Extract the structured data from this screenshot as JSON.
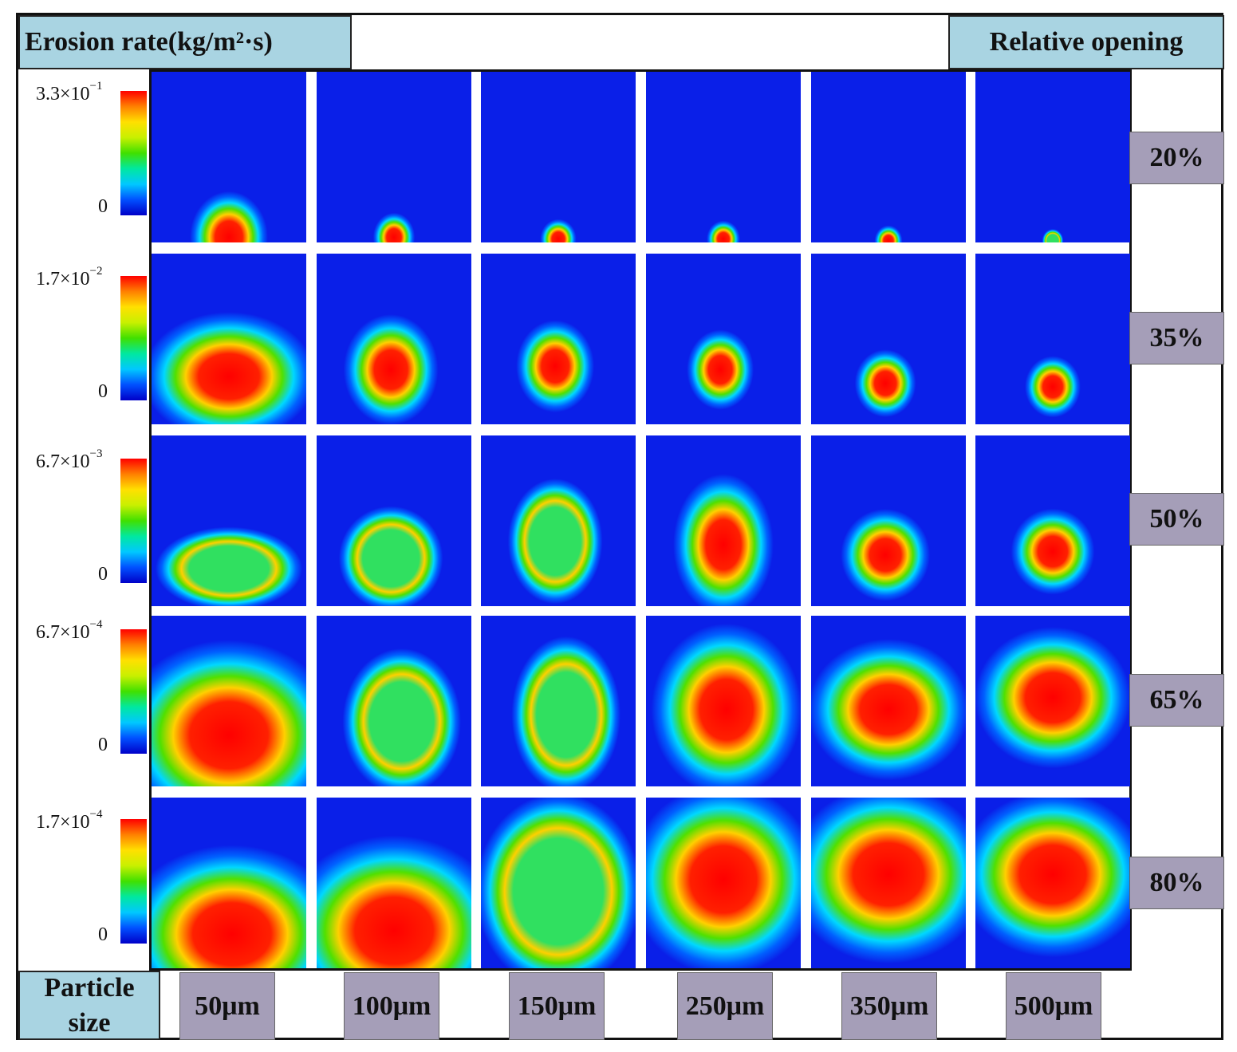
{
  "figure": {
    "erosion_header": "Erosion rate(kg/m²·s)",
    "opening_header": "Relative opening",
    "particle_header_line1": "Particle",
    "particle_header_line2": "size"
  },
  "colorbars": [
    {
      "max_base": "3.3×10",
      "max_exp": "−1",
      "min": "0"
    },
    {
      "max_base": "1.7×10",
      "max_exp": "−2",
      "min": "0"
    },
    {
      "max_base": "6.7×10",
      "max_exp": "−3",
      "min": "0"
    },
    {
      "max_base": "6.7×10",
      "max_exp": "−4",
      "min": "0"
    },
    {
      "max_base": "1.7×10",
      "max_exp": "−4",
      "min": "0"
    }
  ],
  "relative_openings": [
    "20%",
    "35%",
    "50%",
    "65%",
    "80%"
  ],
  "particle_sizes": [
    "50μm",
    "100μm",
    "150μm",
    "250μm",
    "350μm",
    "500μm"
  ],
  "colors": {
    "header_bg": "#a9d4e2",
    "tag_bg": "#a59eb8",
    "map_bg": "#0a1fe8",
    "colormap": [
      "#0000c8",
      "#0050ff",
      "#00c8ff",
      "#00e8a0",
      "#40e000",
      "#c8f000",
      "#ffe000",
      "#ff8000",
      "#ff0000"
    ]
  },
  "chart_data": {
    "type": "heatmap",
    "title": "Erosion rate(kg/m²·s)",
    "xlabel": "Particle size",
    "ylabel": "Relative opening",
    "columns": [
      "50μm",
      "100μm",
      "150μm",
      "250μm",
      "350μm",
      "500μm"
    ],
    "rows": [
      "20%",
      "35%",
      "50%",
      "65%",
      "80%"
    ],
    "colorbar_max": [
      0.33,
      0.017,
      0.0067,
      0.00067,
      0.00017
    ],
    "colorbar_min": [
      0,
      0,
      0,
      0,
      0
    ]
  }
}
